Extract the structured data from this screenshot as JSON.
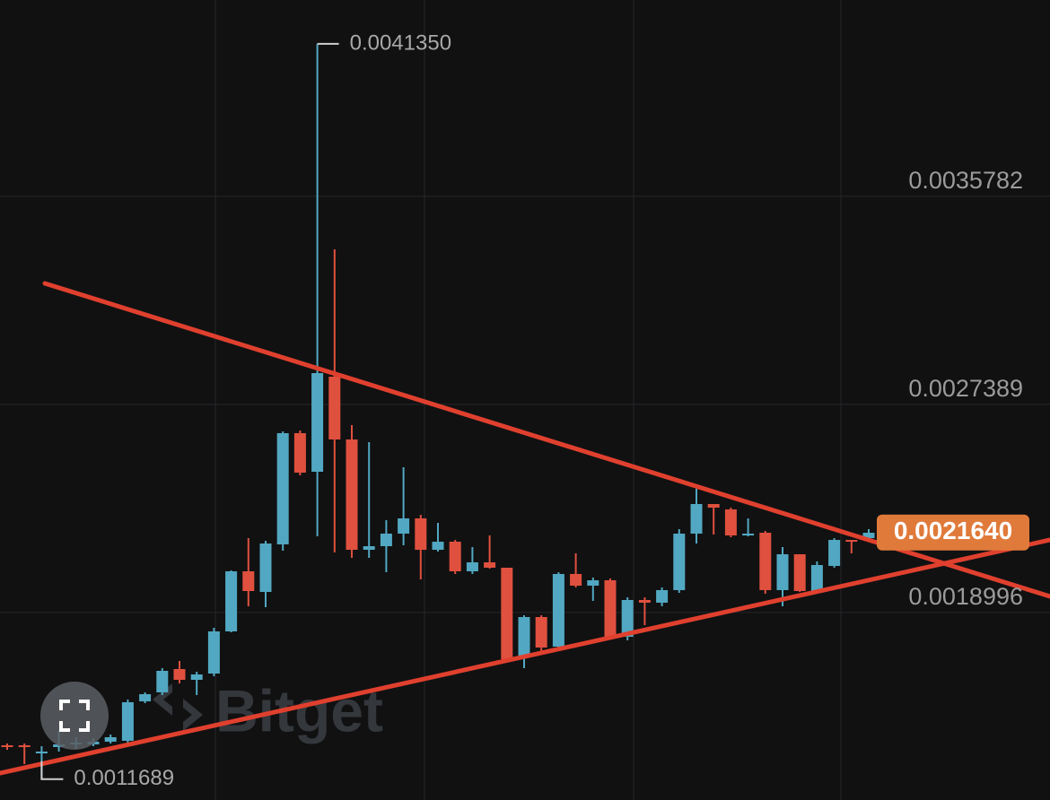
{
  "chart_data": {
    "type": "candlestick",
    "open": [
      0.0013057,
      0.0013057,
      0.0012731,
      0.0012985,
      0.0013093,
      0.0013093,
      0.0013202,
      0.0013238,
      0.001483,
      0.0015191,
      0.0016132,
      0.0015698,
      0.0015951,
      0.0017651,
      0.0020075,
      0.0019243,
      0.0021161,
      0.0025647,
      0.0024091,
      0.0027926,
      0.0025393,
      0.0020943,
      0.0021088,
      0.0021595,
      0.002221,
      0.0020943,
      0.0021269,
      0.0020075,
      0.0020437,
      0.002022,
      0.0016602,
      0.001823,
      0.0017036,
      0.0019967,
      0.0019496,
      0.0019713,
      0.0017434,
      0.0018918,
      0.0018809,
      0.0019316,
      0.0021595,
      0.0022789,
      0.0022571,
      0.0021522,
      0.0021631,
      0.0019316,
      0.0020763,
      0.0019279,
      0.0020292,
      0.0021341,
      0.0021414,
      0.0021631
    ],
    "high": [
      0.0013129,
      0.0013129,
      0.0013021,
      0.0013636,
      0.0013383,
      0.0013346,
      0.0013491,
      0.0014902,
      0.0015191,
      0.0016168,
      0.0016458,
      0.0016023,
      0.0017796,
      0.0020111,
      0.0021414,
      0.0021305,
      0.0025719,
      0.0025755,
      0.004135,
      0.0033063,
      0.0025972,
      0.0025285,
      0.0022137,
      0.0024272,
      0.0022354,
      0.0022029,
      0.0021341,
      0.0021052,
      0.0021522,
      0.002022,
      0.0018303,
      0.0018303,
      0.0020039,
      0.0020799,
      0.0019822,
      0.0019786,
      0.0019026,
      0.0019026,
      0.0019424,
      0.0021776,
      0.0023404,
      0.0022789,
      0.0022644,
      0.002221,
      0.0021703,
      0.0021052,
      0.0020763,
      0.0020473,
      0.0021414,
      0.0021341,
      0.0021776,
      0.0021776
    ],
    "low": [
      0.0012876,
      0.0012297,
      0.0011689,
      0.0012804,
      0.0012912,
      0.0013021,
      0.0013129,
      0.0013093,
      0.0014757,
      0.0015083,
      0.0015553,
      0.0015083,
      0.0015843,
      0.0017615,
      0.0018664,
      0.0018628,
      0.0020907,
      0.0023946,
      0.0021486,
      0.0020835,
      0.0020618,
      0.0020618,
      0.0020039,
      0.0021124,
      0.001975,
      0.0020871,
      0.0019967,
      0.0019967,
      0.0020184,
      0.0016421,
      0.0016168,
      0.0016819,
      0.0016928,
      0.0019424,
      0.0018881,
      0.0017326,
      0.001729,
      0.0017905,
      0.0018664,
      0.0019207,
      0.0021197,
      0.0021559,
      0.002145,
      0.0021486,
      0.0019171,
      0.0018664,
      0.0019243,
      0.0019243,
      0.002022,
      0.0020799,
      0.0021305,
      0.0021631
    ],
    "close": [
      0.0012985,
      0.0012985,
      0.0012804,
      0.0013093,
      0.0013165,
      0.0013202,
      0.0013383,
      0.0014793,
      0.0015119,
      0.001606,
      0.0015698,
      0.0015915,
      0.0017651,
      0.0020075,
      0.0019279,
      0.0021197,
      0.0025647,
      0.0024055,
      0.002807,
      0.0025393,
      0.0020943,
      0.0021088,
      0.0021595,
      0.002221,
      0.0020943,
      0.0021269,
      0.0020075,
      0.0020437,
      0.002022,
      0.001653,
      0.001823,
      0.0017,
      0.0019967,
      0.0019496,
      0.0019713,
      0.0017434,
      0.0018918,
      0.0018809,
      0.0019316,
      0.0021595,
      0.0022789,
      0.0022644,
      0.0021522,
      0.0021595,
      0.0019316,
      0.0020763,
      0.0019279,
      0.0020328,
      0.0021341,
      0.0021269,
      0.0021631,
      0.002164
    ],
    "up_color": "#52a8c2",
    "down_color": "#e0503e",
    "ylim": [
      0.001085,
      0.004312
    ],
    "yticks": [
      0.0018996,
      0.0027389,
      0.0035782
    ],
    "grid": true,
    "annotations": [
      {
        "value": 0.004135,
        "label": "0.0041350"
      },
      {
        "value": 0.0011689,
        "label": "0.0011689"
      }
    ],
    "last_price": {
      "value": 0.002164,
      "label": "0.0021640",
      "color": "#e07a3a"
    },
    "watermark": "Bitget"
  }
}
